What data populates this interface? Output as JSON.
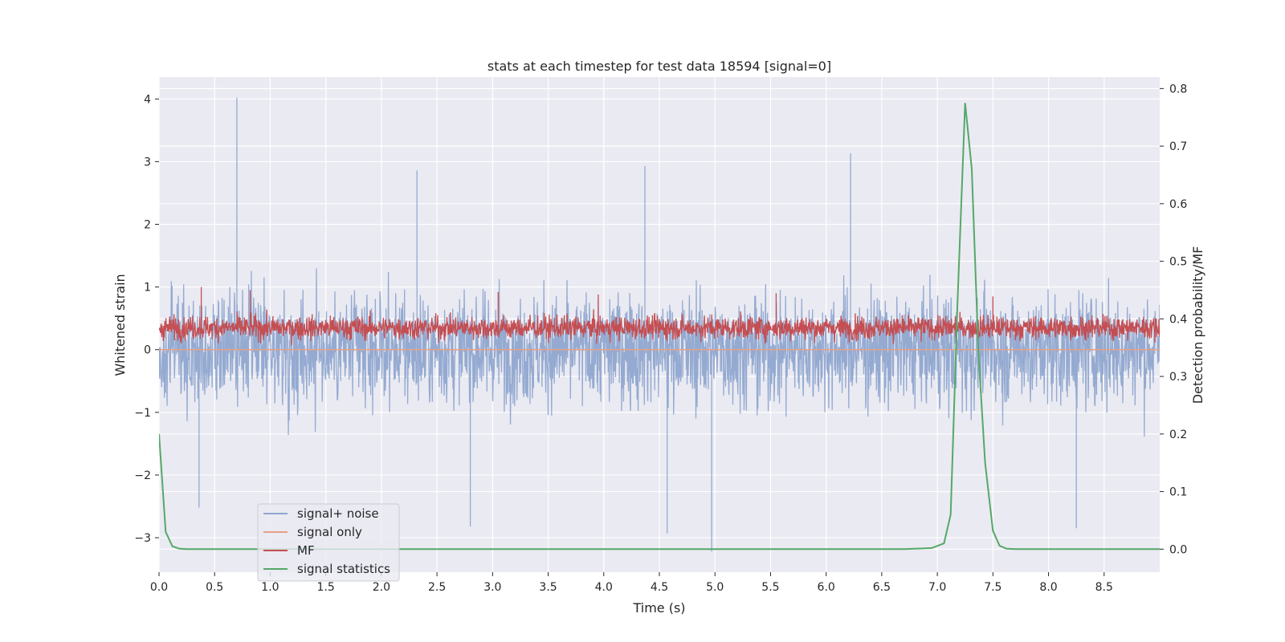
{
  "chart_data": {
    "type": "line",
    "title": "stats at each timestep for test data 18594 [signal=0]",
    "xlabel": "Time (s)",
    "ylabel": "Whitened strain",
    "ylabel_right": "Detection probability/MF",
    "xlim": [
      0.0,
      9.0
    ],
    "ylim": [
      -3.55,
      4.35
    ],
    "ylim_right": [
      -0.04,
      0.82
    ],
    "x_ticks": [
      0.0,
      0.5,
      1.0,
      1.5,
      2.0,
      2.5,
      3.0,
      3.5,
      4.0,
      4.5,
      5.0,
      5.5,
      6.0,
      6.5,
      7.0,
      7.5,
      8.0,
      8.5
    ],
    "x_tick_labels": [
      "0.0",
      "0.5",
      "1.0",
      "1.5",
      "2.0",
      "2.5",
      "3.0",
      "3.5",
      "4.0",
      "4.5",
      "5.0",
      "5.5",
      "6.0",
      "6.5",
      "7.0",
      "7.5",
      "8.0",
      "8.5"
    ],
    "y_ticks": [
      -3,
      -2,
      -1,
      0,
      1,
      2,
      3,
      4
    ],
    "y_tick_labels": [
      "−3",
      "−2",
      "−1",
      "0",
      "1",
      "2",
      "3",
      "4"
    ],
    "y_right_ticks": [
      0.0,
      0.1,
      0.2,
      0.3,
      0.4,
      0.5,
      0.6,
      0.7,
      0.8
    ],
    "y_right_tick_labels": [
      "0.0",
      "0.1",
      "0.2",
      "0.3",
      "0.4",
      "0.5",
      "0.6",
      "0.7",
      "0.8"
    ],
    "grid": true,
    "legend_position": "lower-left",
    "series": [
      {
        "name": "signal+ noise",
        "color": "#8fa6cf",
        "axis": "left",
        "description": "noise-like whitened strain, roughly spanning -2.5 to 2.5",
        "envelope_range": [
          -2.5,
          2.5
        ],
        "spikes": [
          {
            "x": 0.7,
            "y": 4.02
          },
          {
            "x": 6.22,
            "y": 3.13
          },
          {
            "x": 4.37,
            "y": 2.93
          },
          {
            "x": 2.32,
            "y": 2.86
          },
          {
            "x": 4.97,
            "y": -3.22
          },
          {
            "x": 2.8,
            "y": -2.82
          },
          {
            "x": 8.25,
            "y": -2.85
          },
          {
            "x": 0.36,
            "y": -2.52
          },
          {
            "x": 4.57,
            "y": -2.93
          }
        ]
      },
      {
        "name": "signal only",
        "color": "#e8a084",
        "axis": "left",
        "x": [
          0.0,
          9.0
        ],
        "values": [
          0.0,
          0.0
        ]
      },
      {
        "name": "MF",
        "color": "#c44e52",
        "axis": "left",
        "description": "matched filter output, roughly spanning 0 to 0.7",
        "band_range": [
          0.0,
          0.7
        ],
        "spikes": [
          {
            "x": 0.38,
            "y": 1.0
          },
          {
            "x": 0.82,
            "y": 0.95
          },
          {
            "x": 3.05,
            "y": 0.92
          },
          {
            "x": 3.95,
            "y": 0.88
          },
          {
            "x": 5.55,
            "y": 0.9
          },
          {
            "x": 7.5,
            "y": 0.85
          }
        ]
      },
      {
        "name": "signal statistics",
        "color": "#55a868",
        "axis": "right",
        "x": [
          0.0,
          0.06,
          0.12,
          0.18,
          0.25,
          0.5,
          1.0,
          2.0,
          3.0,
          4.0,
          5.0,
          6.0,
          6.7,
          6.95,
          7.06,
          7.12,
          7.18,
          7.25,
          7.31,
          7.37,
          7.43,
          7.5,
          7.56,
          7.62,
          7.7,
          8.0,
          9.0
        ],
        "values": [
          0.2,
          0.03,
          0.005,
          0.001,
          0.0,
          0.0,
          0.0,
          0.0,
          0.0,
          0.0,
          0.0,
          0.0,
          0.0,
          0.002,
          0.01,
          0.06,
          0.42,
          0.775,
          0.66,
          0.34,
          0.15,
          0.032,
          0.006,
          0.001,
          0.0,
          0.0,
          0.0
        ]
      }
    ]
  }
}
